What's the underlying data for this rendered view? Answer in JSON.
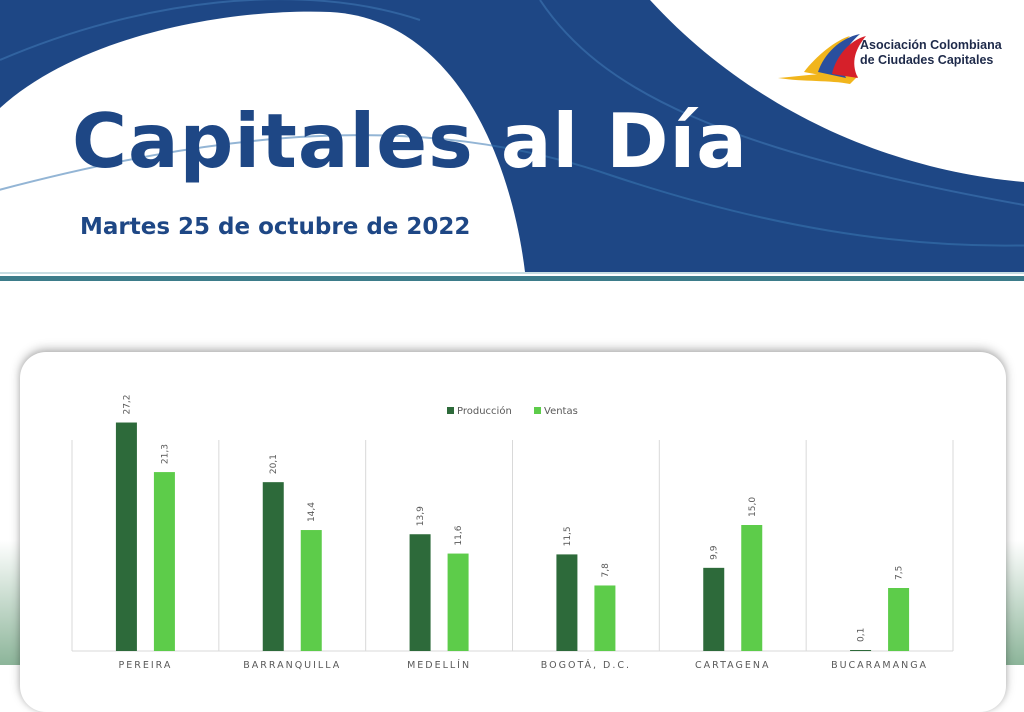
{
  "header": {
    "title_part1": "Capitales",
    "title_part2": "al Día",
    "date": "Martes 25 de octubre de 2022"
  },
  "logo": {
    "line1": "Asociación Colombiana",
    "line2": "de Ciudades Capitales"
  },
  "colors": {
    "brand_blue": "#1e4785",
    "produccion": "#2d6a3a",
    "ventas": "#5dcc4a",
    "rule": "#3d7c8a"
  },
  "chart_data": {
    "type": "bar",
    "title": "",
    "xlabel": "",
    "ylabel": "",
    "ylim": [
      0,
      30
    ],
    "grid": false,
    "legend_position": "top-center",
    "categories": [
      "PEREIRA",
      "BARRANQUILLA",
      "MEDELLÍN",
      "BOGOTÁ, D.C.",
      "CARTAGENA",
      "BUCARAMANGA"
    ],
    "series": [
      {
        "name": "Producción",
        "color": "#2d6a3a",
        "values": [
          27.2,
          20.1,
          13.9,
          11.5,
          9.9,
          0.1
        ],
        "labels": [
          "27,2",
          "20,1",
          "13,9",
          "11,5",
          "9,9",
          "0,1"
        ]
      },
      {
        "name": "Ventas",
        "color": "#5dcc4a",
        "values": [
          21.3,
          14.4,
          11.6,
          7.8,
          15.0,
          7.5
        ],
        "labels": [
          "21,3",
          "14,4",
          "11,6",
          "7,8",
          "15,0",
          "7,5"
        ]
      }
    ]
  }
}
